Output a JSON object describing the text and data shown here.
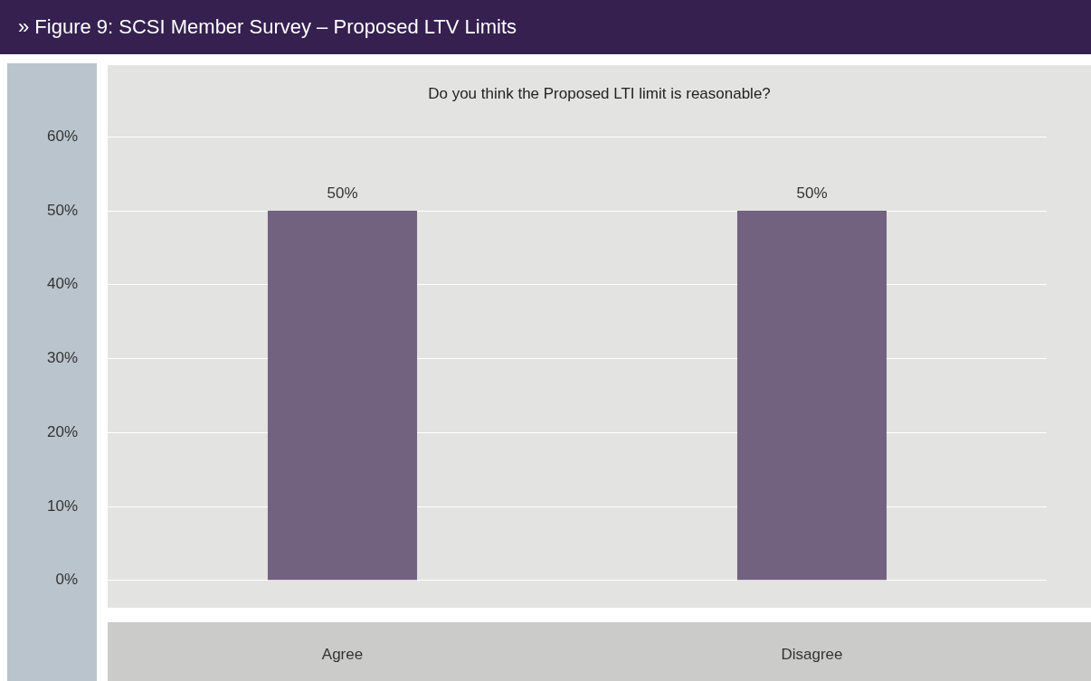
{
  "chart_data": {
    "type": "bar",
    "title": "» Figure 9: SCSI Member Survey – Proposed LTV Limits",
    "subtitle": "Do you think the Proposed LTI limit is reasonable?",
    "categories": [
      "Agree",
      "Disagree"
    ],
    "values": [
      50,
      50
    ],
    "color": "#72627f",
    "value_labels": [
      "50%",
      "50%"
    ],
    "ylim": [
      -3.7,
      69.7
    ],
    "yticks": [
      {
        "value": 0,
        "label": "0%"
      },
      {
        "value": 10,
        "label": "10%"
      },
      {
        "value": 20,
        "label": "20%"
      },
      {
        "value": 30,
        "label": "30%"
      },
      {
        "value": 40,
        "label": "40%"
      },
      {
        "value": 50,
        "label": "50%"
      },
      {
        "value": 60,
        "label": "60%"
      }
    ],
    "grid": "y",
    "legend": false
  }
}
